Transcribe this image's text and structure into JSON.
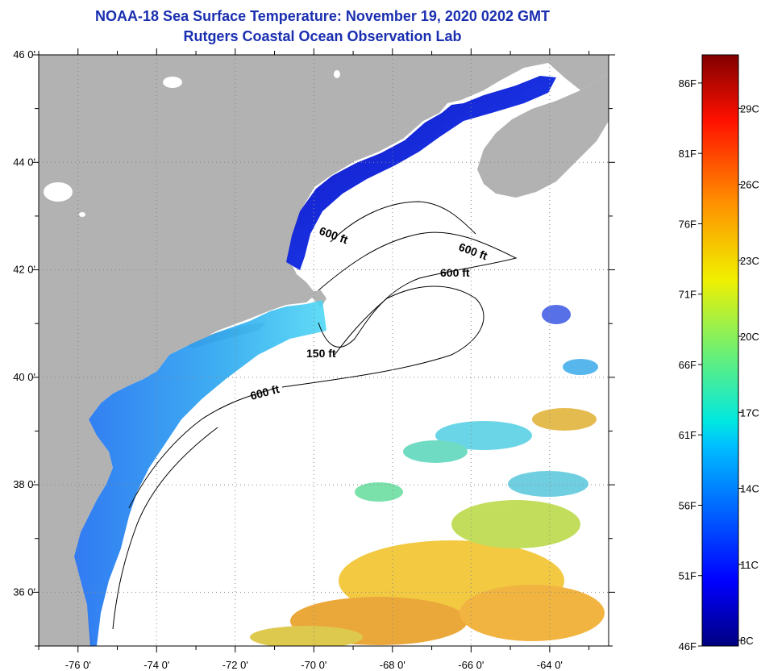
{
  "header": {
    "title": "NOAA-18 Sea Surface Temperature:  November 19, 2020 0202 GMT",
    "subtitle": "Rutgers Coastal Ocean Observation Lab"
  },
  "map": {
    "lat_ticks": [
      "46 0'",
      "44 0'",
      "42 0'",
      "40 0'",
      "38 0'",
      "36 0'"
    ],
    "lon_ticks": [
      "-76 0'",
      "-74 0'",
      "-72 0'",
      "-70 0'",
      "-68 0'",
      "-66 0'",
      "-64 0'"
    ],
    "lon_range": [
      -77,
      -62.5
    ],
    "lat_range": [
      35,
      46
    ],
    "contour_labels": [
      "600 ft",
      "600 ft",
      "600 ft",
      "150 ft",
      "600 ft"
    ],
    "land_color": "#b2b2b2"
  },
  "colorbar": {
    "fahrenheit_labels": [
      "86F",
      "81F",
      "76F",
      "71F",
      "66F",
      "61F",
      "56F",
      "51F",
      "46F"
    ],
    "celsius_labels": [
      "29C",
      "26C",
      "23C",
      "20C",
      "17C",
      "14C",
      "11C",
      "8C"
    ],
    "min_f": 46,
    "max_f": 88
  }
}
